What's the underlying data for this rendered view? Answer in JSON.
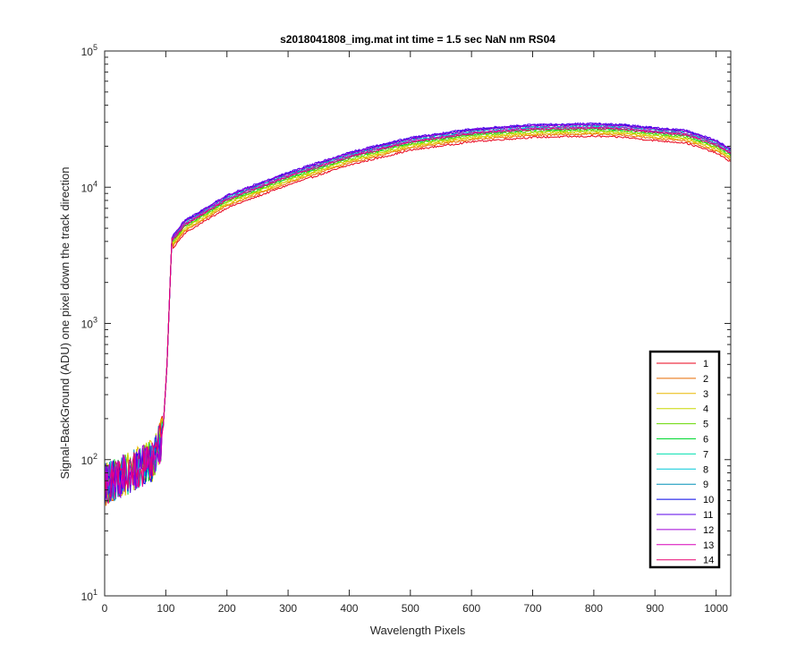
{
  "chart_data": {
    "type": "line",
    "title": "s2018041808_img.mat int time = 1.5 sec  NaN nm RS04",
    "xlabel": "Wavelength Pixels",
    "ylabel": "Signal-BackGround (ADU) one pixel down the track direction",
    "xlim": [
      0,
      1024
    ],
    "ylim": [
      10,
      100000
    ],
    "yscale": "log",
    "xticks": [
      0,
      100,
      200,
      300,
      400,
      500,
      600,
      700,
      800,
      900,
      1000
    ],
    "yticks": [
      {
        "base": "10",
        "exp": "1"
      },
      {
        "base": "10",
        "exp": "2"
      },
      {
        "base": "10",
        "exp": "3"
      },
      {
        "base": "10",
        "exp": "4"
      },
      {
        "base": "10",
        "exp": "5"
      }
    ],
    "grid": false,
    "legend_position": "bottom-right",
    "profile_x": [
      0,
      40,
      80,
      95,
      102,
      106,
      110,
      130,
      200,
      300,
      400,
      500,
      600,
      700,
      800,
      850,
      900,
      950,
      1000,
      1024
    ],
    "profile_y": [
      65,
      80,
      100,
      150,
      500,
      1500,
      4200,
      5500,
      8500,
      12500,
      17500,
      22500,
      26000,
      28000,
      28500,
      28000,
      26500,
      25500,
      21500,
      18500
    ],
    "series": [
      {
        "name": "1",
        "color": "#e8001a",
        "scale": 0.83
      },
      {
        "name": "2",
        "color": "#e86a00",
        "scale": 0.86
      },
      {
        "name": "3",
        "color": "#e8b800",
        "scale": 0.88
      },
      {
        "name": "4",
        "color": "#c8d800",
        "scale": 0.9
      },
      {
        "name": "5",
        "color": "#66d800",
        "scale": 0.92
      },
      {
        "name": "6",
        "color": "#00d830",
        "scale": 0.94
      },
      {
        "name": "7",
        "color": "#00e0b0",
        "scale": 0.96
      },
      {
        "name": "8",
        "color": "#00c8d8",
        "scale": 0.98
      },
      {
        "name": "9",
        "color": "#0090b8",
        "scale": 1.0
      },
      {
        "name": "10",
        "color": "#0000e8",
        "scale": 1.02
      },
      {
        "name": "11",
        "color": "#5a00e8",
        "scale": 1.03
      },
      {
        "name": "12",
        "color": "#a000d8",
        "scale": 1.01
      },
      {
        "name": "13",
        "color": "#d800b8",
        "scale": 0.97
      },
      {
        "name": "14",
        "color": "#e80070",
        "scale": 0.95
      }
    ]
  }
}
